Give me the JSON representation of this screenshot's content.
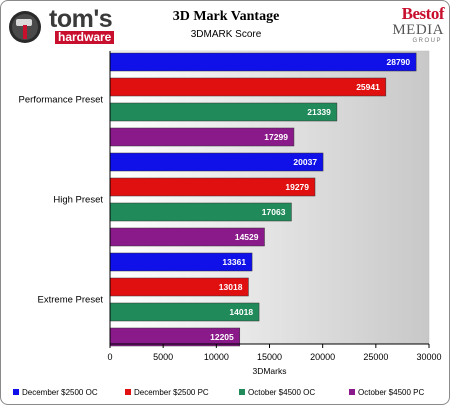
{
  "header": {
    "logo_line1": "tom's",
    "logo_line2": "hardware",
    "badge_line1": "Bestof",
    "badge_line2": "MEDIA",
    "badge_line3": "GROUP"
  },
  "colors": {
    "series": [
      "#1010e8",
      "#e01010",
      "#208a5a",
      "#8a1a8a"
    ],
    "plot_gradient_left": "#ffffff",
    "plot_gradient_right": "#c8c8c8"
  },
  "chart_data": {
    "type": "bar",
    "orientation": "horizontal",
    "title": "3D Mark Vantage",
    "subtitle": "3DMARK Score",
    "xlabel": "3DMarks",
    "ylabel": "",
    "xlim": [
      0,
      30000
    ],
    "x_ticks": [
      0,
      5000,
      10000,
      15000,
      20000,
      25000,
      30000
    ],
    "categories": [
      "Performance Preset",
      "High Preset",
      "Extreme Preset"
    ],
    "series": [
      {
        "name": "December $2500 OC",
        "values": [
          28790,
          20037,
          13361
        ]
      },
      {
        "name": "December $2500 PC",
        "values": [
          25941,
          19279,
          13018
        ]
      },
      {
        "name": "October $4500 OC",
        "values": [
          21339,
          17063,
          14018
        ]
      },
      {
        "name": "October $4500 PC",
        "values": [
          17299,
          14529,
          12205
        ]
      }
    ],
    "grid": false,
    "legend": "bottom"
  }
}
